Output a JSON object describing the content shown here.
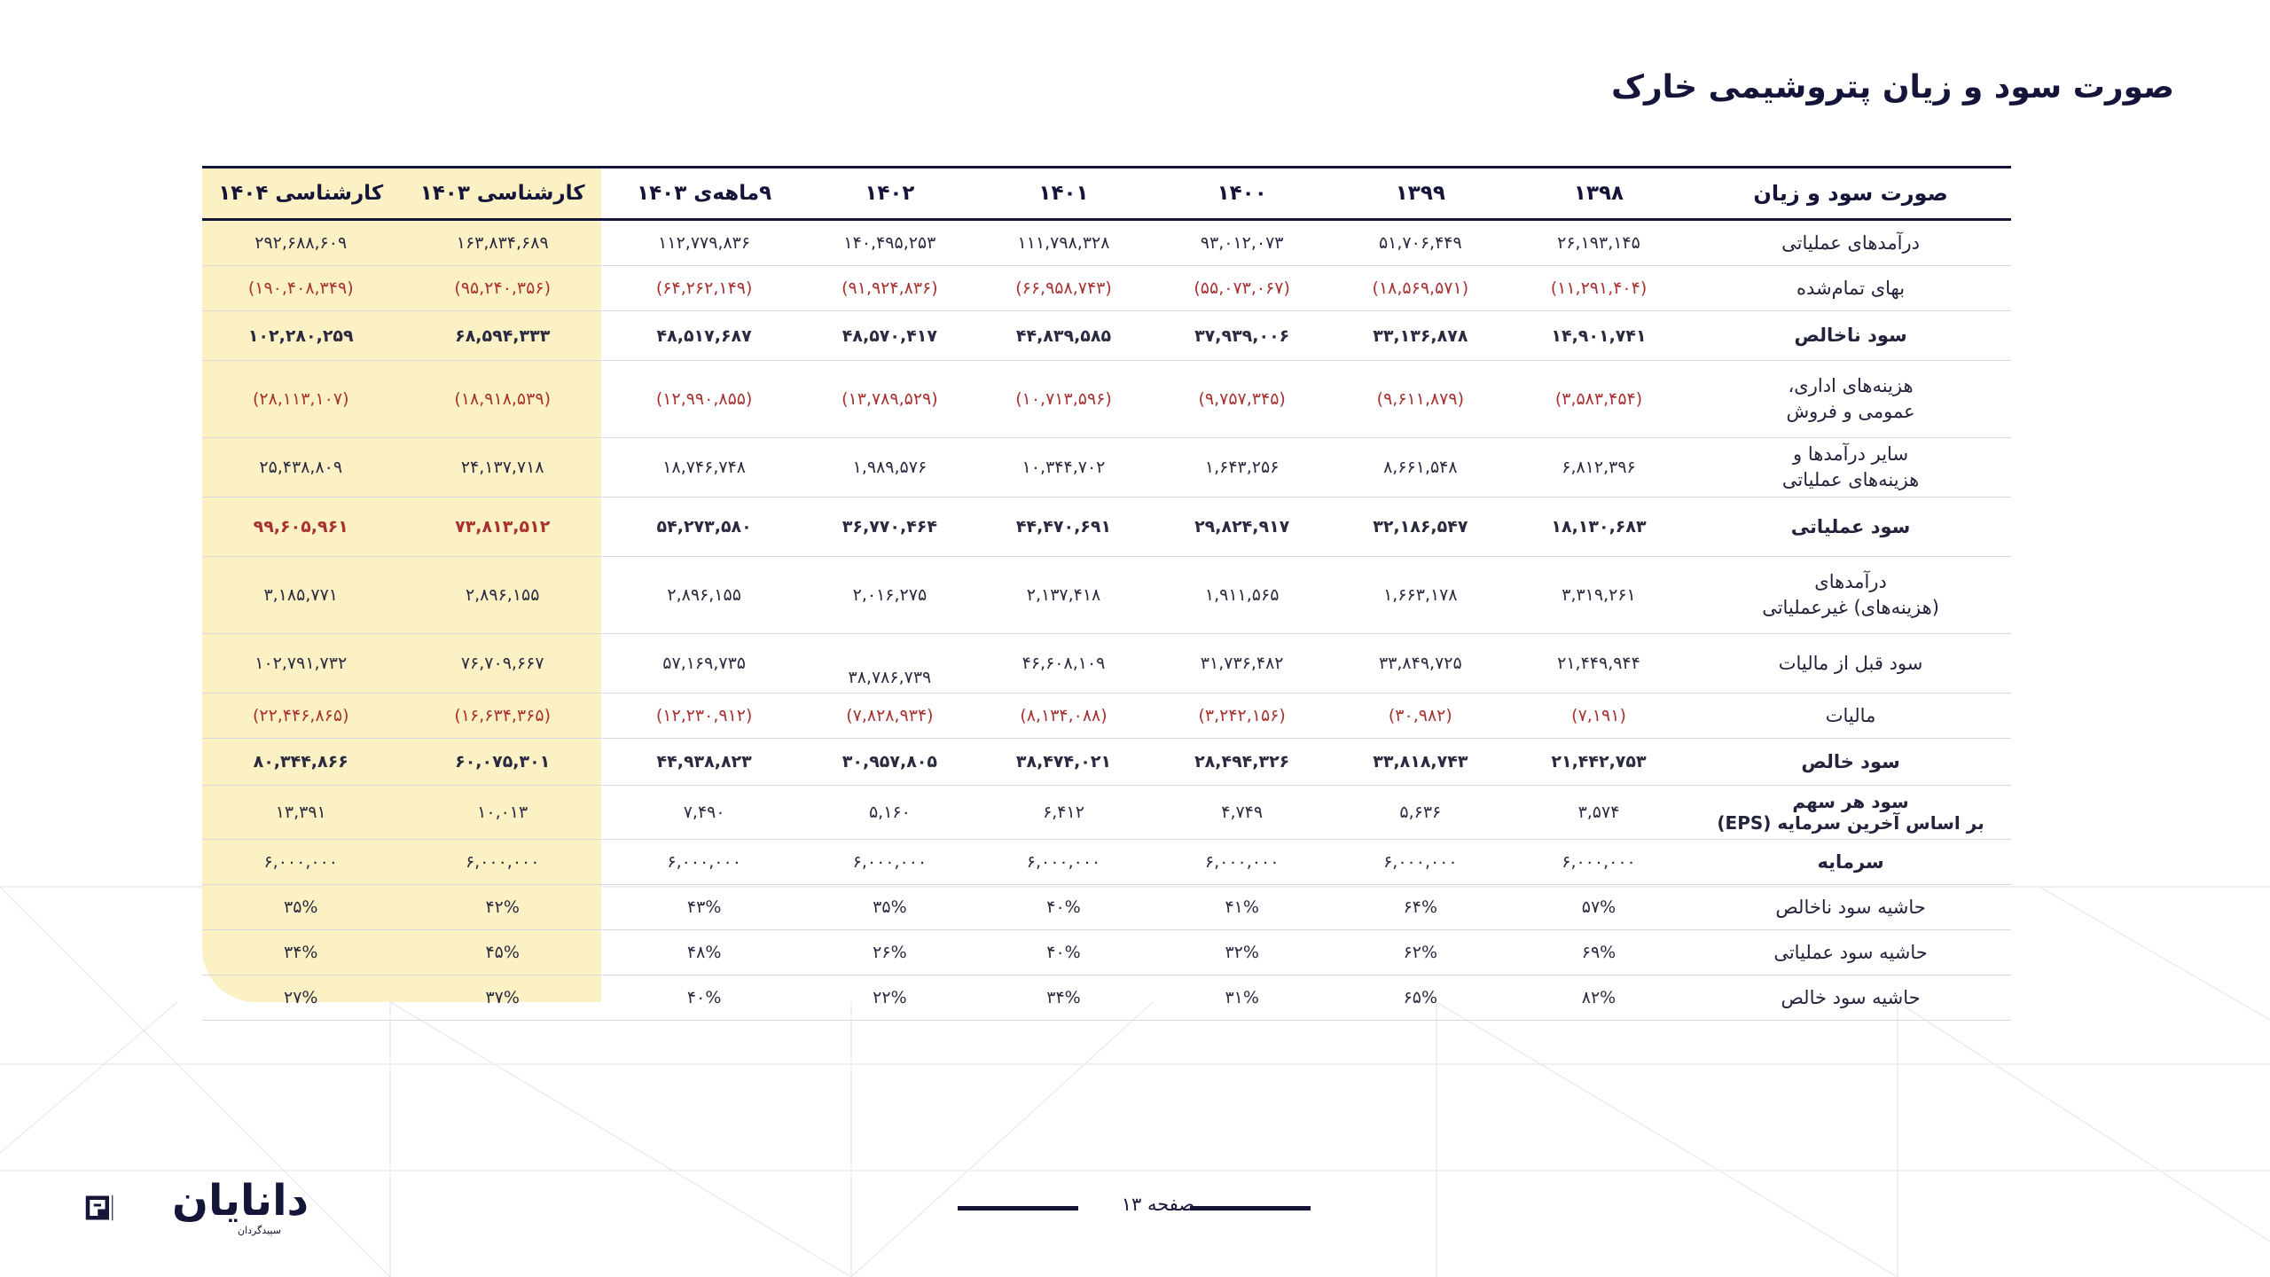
{
  "title": "صورت سود و زیان پتروشیمی خارک",
  "table": {
    "headers": [
      "صورت سود و زیان",
      "۱۳۹۸",
      "۱۳۹۹",
      "۱۴۰۰",
      "۱۴۰۱",
      "۱۴۰۲",
      "۹ماهه‌ی ۱۴۰۳",
      "کارشناسی ۱۴۰۳",
      "کارشناسی ۱۴۰۴"
    ],
    "rows": [
      {
        "label": "درآمدهای عملیاتی",
        "values": [
          "۲۶,۱۹۳,۱۴۵",
          "۵۱,۷۰۶,۴۴۹",
          "۹۳,۰۱۲,۰۷۳",
          "۱۱۱,۷۹۸,۳۲۸",
          "۱۴۰,۴۹۵,۲۵۳",
          "۱۱۲,۷۷۹,۸۳۶",
          "۱۶۳,۸۳۴,۶۸۹",
          "۲۹۲,۶۸۸,۶۰۹"
        ]
      },
      {
        "label": "بهای تمام‌شده",
        "values": [
          "(۱۱,۲۹۱,۴۰۴)",
          "(۱۸,۵۶۹,۵۷۱)",
          "(۵۵,۰۷۳,۰۶۷)",
          "(۶۶,۹۵۸,۷۴۳)",
          "(۹۱,۹۲۴,۸۳۶)",
          "(۶۴,۲۶۲,۱۴۹)",
          "(۹۵,۲۴۰,۳۵۶)",
          "(۱۹۰,۴۰۸,۳۴۹)"
        ]
      },
      {
        "label": "سود ناخالص",
        "values": [
          "۱۴,۹۰۱,۷۴۱",
          "۳۳,۱۳۶,۸۷۸",
          "۳۷,۹۳۹,۰۰۶",
          "۴۴,۸۳۹,۵۸۵",
          "۴۸,۵۷۰,۴۱۷",
          "۴۸,۵۱۷,۶۸۷",
          "۶۸,۵۹۴,۳۳۳",
          "۱۰۲,۲۸۰,۲۵۹"
        ]
      },
      {
        "label1": "هزینه‌های اداری،",
        "label2": "عمومی و فروش",
        "values": [
          "(۳,۵۸۳,۴۵۴)",
          "(۹,۶۱۱,۸۷۹)",
          "(۹,۷۵۷,۳۴۵)",
          "(۱۰,۷۱۳,۵۹۶)",
          "(۱۳,۷۸۹,۵۲۹)",
          "(۱۲,۹۹۰,۸۵۵)",
          "(۱۸,۹۱۸,۵۳۹)",
          "(۲۸,۱۱۳,۱۰۷)"
        ]
      },
      {
        "label1": "سایر درآمدها و",
        "label2": "هزینه‌های عملیاتی",
        "values": [
          "۶,۸۱۲,۳۹۶",
          "۸,۶۶۱,۵۴۸",
          "۱,۶۴۳,۲۵۶",
          "۱۰,۳۴۴,۷۰۲",
          "۱,۹۸۹,۵۷۶",
          "۱۸,۷۴۶,۷۴۸",
          "۲۴,۱۳۷,۷۱۸",
          "۲۵,۴۳۸,۸۰۹"
        ]
      },
      {
        "label": "سود عملیاتی",
        "values": [
          "۱۸,۱۳۰,۶۸۳",
          "۳۲,۱۸۶,۵۴۷",
          "۲۹,۸۲۴,۹۱۷",
          "۴۴,۴۷۰,۶۹۱",
          "۳۶,۷۷۰,۴۶۴",
          "۵۴,۲۷۳,۵۸۰",
          "۷۳,۸۱۳,۵۱۲",
          "۹۹,۶۰۵,۹۶۱"
        ]
      },
      {
        "label1": "درآمدهای",
        "label2": "(هزینه‌های) غیرعملیاتی",
        "values": [
          "۳,۳۱۹,۲۶۱",
          "۱,۶۶۳,۱۷۸",
          "۱,۹۱۱,۵۶۵",
          "۲,۱۳۷,۴۱۸",
          "۲,۰۱۶,۲۷۵",
          "۲,۸۹۶,۱۵۵",
          "۲,۸۹۶,۱۵۵",
          "۳,۱۸۵,۷۷۱"
        ]
      },
      {
        "label": "سود قبل از مالیات",
        "values": [
          "۲۱,۴۴۹,۹۴۴",
          "۳۳,۸۴۹,۷۲۵",
          "۳۱,۷۳۶,۴۸۲",
          "۴۶,۶۰۸,۱۰۹",
          "۳۸,۷۸۶,۷۳۹",
          "۵۷,۱۶۹,۷۳۵",
          "۷۶,۷۰۹,۶۶۷",
          "۱۰۲,۷۹۱,۷۳۲"
        ]
      },
      {
        "label": "مالیات",
        "values": [
          "(۷,۱۹۱)",
          "(۳۰,۹۸۲)",
          "(۳,۲۴۲,۱۵۶)",
          "(۸,۱۳۴,۰۸۸)",
          "(۷,۸۲۸,۹۳۴)",
          "(۱۲,۲۳۰,۹۱۲)",
          "(۱۶,۶۳۴,۳۶۵)",
          "(۲۲,۴۴۶,۸۶۵)"
        ]
      },
      {
        "label": "سود خالص",
        "values": [
          "۲۱,۴۴۲,۷۵۳",
          "۳۳,۸۱۸,۷۴۳",
          "۲۸,۴۹۴,۳۲۶",
          "۳۸,۴۷۴,۰۲۱",
          "۳۰,۹۵۷,۸۰۵",
          "۴۴,۹۳۸,۸۲۳",
          "۶۰,۰۷۵,۳۰۱",
          "۸۰,۳۴۴,۸۶۶"
        ]
      },
      {
        "label1": "سود هر سهم",
        "label2": "بر اساس آخرین سرمایه (EPS)",
        "values": [
          "۳,۵۷۴",
          "۵,۶۳۶",
          "۴,۷۴۹",
          "۶,۴۱۲",
          "۵,۱۶۰",
          "۷,۴۹۰",
          "۱۰,۰۱۳",
          "۱۳,۳۹۱"
        ]
      },
      {
        "label": "سرمایه",
        "values": [
          "۶,۰۰۰,۰۰۰",
          "۶,۰۰۰,۰۰۰",
          "۶,۰۰۰,۰۰۰",
          "۶,۰۰۰,۰۰۰",
          "۶,۰۰۰,۰۰۰",
          "۶,۰۰۰,۰۰۰",
          "۶,۰۰۰,۰۰۰",
          "۶,۰۰۰,۰۰۰"
        ]
      },
      {
        "label": "حاشیه سود ناخالص",
        "values": [
          "۵۷%",
          "۶۴%",
          "۴۱%",
          "۴۰%",
          "۳۵%",
          "۴۳%",
          "۴۲%",
          "۳۵%"
        ]
      },
      {
        "label": "حاشیه سود عملیاتی",
        "values": [
          "۶۹%",
          "۶۲%",
          "۳۲%",
          "۴۰%",
          "۲۶%",
          "۴۸%",
          "۴۵%",
          "۳۴%"
        ]
      },
      {
        "label": "حاشیه سود خالص",
        "values": [
          "۸۲%",
          "۶۵%",
          "۳۱%",
          "۳۴%",
          "۲۲%",
          "۴۰%",
          "۳۷%",
          "۲۷%"
        ]
      }
    ]
  },
  "footer": {
    "page": "صفحه ۱۳",
    "logo_text": "دانایان",
    "logo_sub": "سپیدگردان"
  },
  "colors": {
    "navy": "#15153a",
    "negative": "#a83232",
    "highlight": "#fcf1c4"
  }
}
